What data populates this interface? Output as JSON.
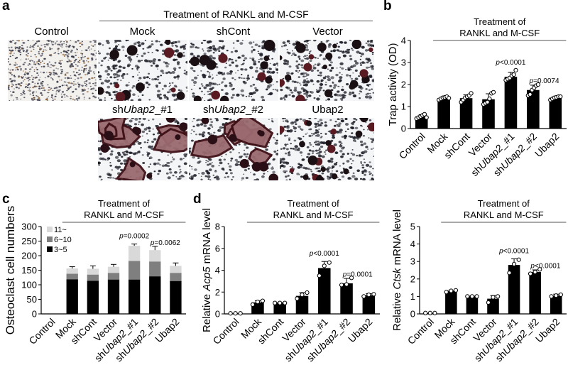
{
  "figure": {
    "panel_letters": [
      "a",
      "b",
      "c",
      "d"
    ],
    "panel_a": {
      "treatment_label": "Treatment of RANKL and M-CSF",
      "tiles": [
        {
          "label": "Control",
          "kind": "control"
        },
        {
          "label_pre": "",
          "label_it": "",
          "label": "Mock",
          "kind": "few-large"
        },
        {
          "label": "shCont",
          "kind": "few-large"
        },
        {
          "label": "Vector",
          "kind": "many-small"
        },
        {
          "label_pre": "sh",
          "label_it": "Ubap2",
          "label_post": "_#1",
          "kind": "huge"
        },
        {
          "label_pre": "sh",
          "label_it": "Ubap2",
          "label_post": "_#2",
          "kind": "huge"
        },
        {
          "label": "Ubap2",
          "kind": "many-small"
        }
      ]
    },
    "treatment_label_line1": "Treatment of",
    "treatment_label_line2": "RANKL and M-CSF",
    "categories": [
      {
        "pre": "Control",
        "it": "",
        "post": ""
      },
      {
        "pre": "Mock",
        "it": "",
        "post": ""
      },
      {
        "pre": "shCont",
        "it": "",
        "post": ""
      },
      {
        "pre": "Vector",
        "it": "",
        "post": ""
      },
      {
        "pre": "sh",
        "it": "Ubap2",
        "post": "_#1"
      },
      {
        "pre": "sh",
        "it": "Ubap2",
        "post": "_#2"
      },
      {
        "pre": "Ubap2",
        "it": "",
        "post": ""
      }
    ]
  },
  "chart_data": [
    {
      "id": "b",
      "type": "bar",
      "title": "",
      "ylabel": "Trap activity (OD)",
      "xlabel": "",
      "ylim": [
        0,
        4
      ],
      "yticks": [
        0,
        1,
        2,
        3,
        4
      ],
      "categories": [
        "Control",
        "Mock",
        "shCont",
        "Vector",
        "shUbap2_#1",
        "shUbap2_#2",
        "Ubap2"
      ],
      "values": [
        0.55,
        1.37,
        1.38,
        1.33,
        2.35,
        1.75,
        1.4
      ],
      "errors": [
        0.08,
        0.08,
        0.15,
        0.25,
        0.2,
        0.22,
        0.05
      ],
      "points": [
        [
          0.45,
          0.5,
          0.55,
          0.6,
          0.65,
          0.5
        ],
        [
          1.3,
          1.35,
          1.4,
          1.42,
          1.45,
          1.38
        ],
        [
          1.2,
          1.3,
          1.4,
          1.45,
          1.5,
          1.6
        ],
        [
          1.1,
          1.15,
          1.2,
          1.35,
          1.6,
          1.65
        ],
        [
          2.2,
          2.25,
          2.3,
          2.4,
          2.45,
          2.65
        ],
        [
          1.5,
          1.55,
          1.75,
          1.85,
          1.95,
          2.0
        ],
        [
          1.3,
          1.35,
          1.4,
          1.42,
          1.45,
          1.45
        ]
      ],
      "annotations": [
        {
          "category": "shUbap2_#1",
          "pre": "p",
          "text": "<0.0001"
        },
        {
          "category": "shUbap2_#2",
          "pre": "p",
          "text": "=0.0074"
        }
      ],
      "bracket": {
        "from": "Mock",
        "to": "Ubap2",
        "line1": "Treatment of",
        "line2": "RANKL and M-CSF"
      }
    },
    {
      "id": "c",
      "type": "bar",
      "stacked": true,
      "title": "",
      "ylabel": "Osteoclast cell numbers",
      "xlabel": "",
      "ylim": [
        0,
        300
      ],
      "yticks": [
        0,
        50,
        100,
        150,
        200,
        250,
        300
      ],
      "categories": [
        "Control",
        "Mock",
        "shCont",
        "Vector",
        "shUbap2_#1",
        "shUbap2_#2",
        "Ubap2"
      ],
      "series": [
        {
          "name": "3~5",
          "color": "#000000",
          "values": [
            0,
            119,
            114,
            118,
            118,
            129,
            113
          ]
        },
        {
          "name": "6~10",
          "color": "#7f7f7f",
          "values": [
            0,
            19,
            21,
            23,
            64,
            51,
            28
          ]
        },
        {
          "name": "11~",
          "color": "#d9d9d9",
          "values": [
            0,
            18,
            20,
            21,
            52,
            39,
            24
          ]
        }
      ],
      "error_tops": [
        null,
        162,
        165,
        170,
        240,
        232,
        175
      ],
      "legend": {
        "placement": "top-left",
        "order": [
          "11~",
          "6~10",
          "3~5"
        ]
      },
      "annotations": [
        {
          "category": "shUbap2_#1",
          "pre": "p",
          "text": "=0.0002"
        },
        {
          "category": "shUbap2_#2",
          "pre": "p",
          "text": "=0.0062"
        }
      ],
      "bracket": {
        "from": "Mock",
        "to": "Ubap2",
        "line1": "Treatment of",
        "line2": "RANKL and M-CSF"
      }
    },
    {
      "id": "d1",
      "type": "bar",
      "title": "",
      "ylabel_pre": "Relative ",
      "ylabel_it": "Acp5",
      "ylabel_post": " mRNA level",
      "xlabel": "",
      "ylim": [
        0,
        8
      ],
      "yticks": [
        0,
        2,
        4,
        6,
        8
      ],
      "categories": [
        "Control",
        "Mock",
        "shCont",
        "Vector",
        "shUbap2_#1",
        "shUbap2_#2",
        "Ubap2"
      ],
      "values": [
        0.05,
        1.05,
        1.0,
        1.65,
        4.2,
        2.8,
        1.7
      ],
      "errors": [
        0.0,
        0.15,
        0.03,
        0.3,
        0.6,
        0.45,
        0.15
      ],
      "points": [
        [
          0.05,
          0.05,
          0.05
        ],
        [
          0.85,
          1.1,
          1.2
        ],
        [
          1.0,
          1.0,
          1.0
        ],
        [
          1.4,
          1.75,
          1.95
        ],
        [
          3.5,
          4.4,
          4.7
        ],
        [
          2.65,
          2.7,
          3.3
        ],
        [
          1.6,
          1.75,
          1.8
        ]
      ],
      "annotations": [
        {
          "category": "shUbap2_#1",
          "pre": "p",
          "text": "<0.0001"
        },
        {
          "category": "shUbap2_#2",
          "pre": "p",
          "text": "=0.0001"
        }
      ],
      "bracket": {
        "from": "Mock",
        "to": "Ubap2",
        "line1": "Treatment of",
        "line2": "RANKL and M-CSF"
      }
    },
    {
      "id": "d2",
      "type": "bar",
      "title": "",
      "ylabel_pre": "Relative ",
      "ylabel_it": "Ctsk",
      "ylabel_post": " mRNA level",
      "xlabel": "",
      "ylim": [
        0,
        5
      ],
      "yticks": [
        0,
        1,
        2,
        3,
        4,
        5
      ],
      "categories": [
        "Control",
        "Mock",
        "shCont",
        "Vector",
        "shUbap2_#1",
        "shUbap2_#2",
        "Ubap2"
      ],
      "values": [
        0.05,
        1.3,
        1.0,
        0.87,
        2.8,
        2.4,
        1.05
      ],
      "errors": [
        0.0,
        0.06,
        0.02,
        0.18,
        0.35,
        0.12,
        0.08
      ],
      "points": [
        [
          0.05,
          0.05,
          0.05
        ],
        [
          1.25,
          1.32,
          1.35
        ],
        [
          1.0,
          1.0,
          1.0
        ],
        [
          0.65,
          0.95,
          1.0
        ],
        [
          2.35,
          2.85,
          3.1
        ],
        [
          2.3,
          2.4,
          2.55
        ],
        [
          1.0,
          1.05,
          1.1
        ]
      ],
      "annotations": [
        {
          "category": "shUbap2_#1",
          "pre": "p",
          "text": "<0.0001"
        },
        {
          "category": "shUbap2_#2",
          "pre": "p",
          "text": "<0.0001"
        }
      ],
      "bracket": {
        "from": "Mock",
        "to": "Ubap2",
        "line1": "Treatment of",
        "line2": "RANKL and M-CSF"
      }
    }
  ]
}
